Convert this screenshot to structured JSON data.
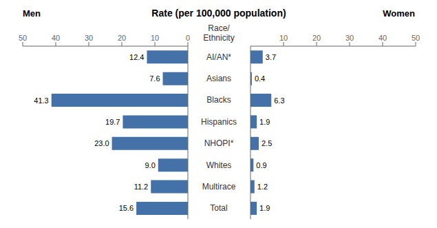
{
  "chart_data": {
    "type": "bar",
    "orientation": "horizontal",
    "title": "Rate (per 100,000 population)",
    "ylabel": "Race/\nEthnicity",
    "categories": [
      "AI/AN*",
      "Asians",
      "Blacks",
      "Hispanics",
      "NHOPI*",
      "Whites",
      "Multirace",
      "Total"
    ],
    "series": [
      {
        "name": "Men",
        "values": [
          12.4,
          7.6,
          41.3,
          19.7,
          23.0,
          9.0,
          11.2,
          15.6
        ],
        "value_labels": [
          "12.4",
          "7.6",
          "41.3",
          "19.7",
          "23.0",
          "9.0",
          "11.2",
          "15.6"
        ]
      },
      {
        "name": "Women",
        "values": [
          3.7,
          0.4,
          6.3,
          1.9,
          2.5,
          0.9,
          1.2,
          1.9
        ]
      }
    ],
    "color": "#4472a8",
    "xlim": [
      0,
      50
    ],
    "xticks": [
      0,
      10,
      20,
      30,
      40,
      50
    ],
    "grid": false,
    "data_labels": true
  }
}
